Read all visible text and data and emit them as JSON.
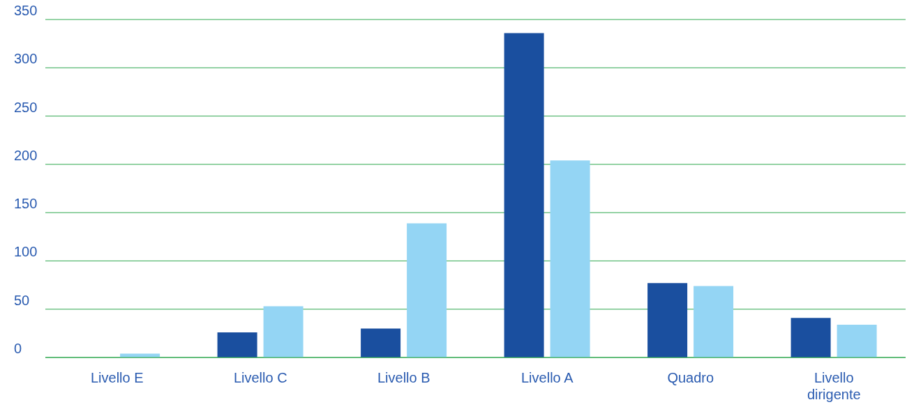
{
  "chart_data": {
    "type": "bar",
    "categories": [
      "Livello E",
      "Livello C",
      "Livello B",
      "Livello A",
      "Quadro",
      "Livello dirigente"
    ],
    "series": [
      {
        "color": "#1a4f9f",
        "values": [
          0,
          26,
          30,
          336,
          77,
          41
        ]
      },
      {
        "color": "#94d5f4",
        "values": [
          4,
          53,
          139,
          204,
          74,
          34
        ]
      }
    ],
    "ylim": [
      0,
      350
    ],
    "yticks": [
      0,
      50,
      100,
      150,
      200,
      250,
      300,
      350
    ],
    "grid": "y"
  }
}
